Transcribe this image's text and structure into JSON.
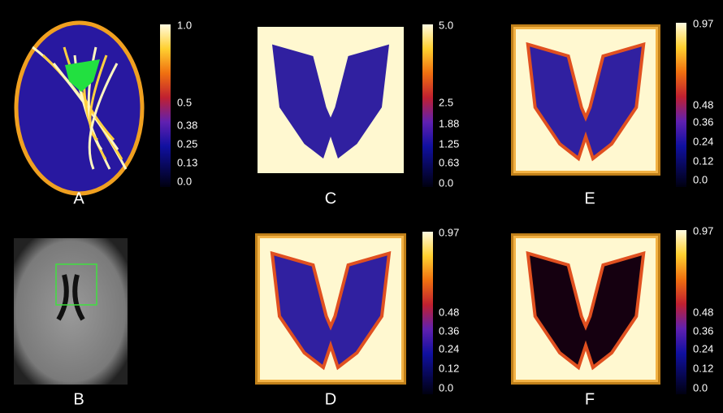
{
  "panels": [
    {
      "label": "A",
      "colorbar": [
        "1.0",
        "0.5",
        "0.38",
        "0.25",
        "0.13",
        "0.0"
      ]
    },
    {
      "label": "C",
      "colorbar": [
        "5.0",
        "2.5",
        "1.88",
        "1.25",
        "0.63",
        "0.0"
      ]
    },
    {
      "label": "E",
      "colorbar": [
        "0.97",
        "0.48",
        "0.36",
        "0.24",
        "0.12",
        "0.0"
      ]
    },
    {
      "label": "B"
    },
    {
      "label": "D",
      "colorbar": [
        "0.97",
        "0.48",
        "0.36",
        "0.24",
        "0.12",
        "0.0"
      ]
    },
    {
      "label": "F",
      "colorbar": [
        "0.97",
        "0.48",
        "0.36",
        "0.24",
        "0.12",
        "0.0"
      ]
    }
  ]
}
